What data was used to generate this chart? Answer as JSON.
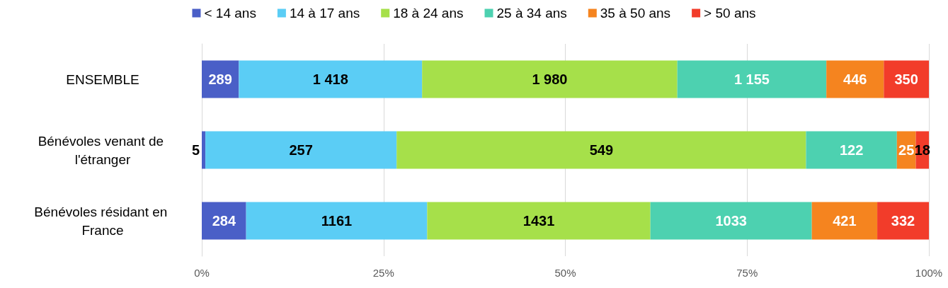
{
  "chart_data": {
    "type": "bar",
    "orientation": "horizontal",
    "stacked": true,
    "categories": [
      "ENSEMBLE",
      "Bénévoles venant de l'étranger",
      "Bénévoles résidant en France"
    ],
    "series": [
      {
        "name": "< 14 ans",
        "color": "#4a5fc7",
        "values": [
          5.1,
          0.5,
          6.1
        ]
      },
      {
        "name": "14 à 17 ans",
        "color": "#5bcdf5",
        "values": [
          25.2,
          26.3,
          24.9
        ]
      },
      {
        "name": "18 à 24 ans",
        "color": "#a6e04a",
        "values": [
          35.1,
          56.3,
          30.7
        ]
      },
      {
        "name": "25 à 34 ans",
        "color": "#4dd1b0",
        "values": [
          20.5,
          12.5,
          22.2
        ]
      },
      {
        "name": "35 à 50 ans",
        "color": "#f5841f",
        "values": [
          7.9,
          2.6,
          9.0
        ]
      },
      {
        "name": "> 50 ans",
        "color": "#f23c2a",
        "values": [
          6.2,
          1.8,
          7.1
        ]
      }
    ],
    "annotations": [
      "289",
      "1 418",
      "1 980",
      "1 155",
      "446",
      "350",
      "5",
      "257",
      "549",
      "122",
      "25",
      "18",
      "284",
      "1161",
      "1431",
      "1033",
      "421",
      "332"
    ],
    "xlim": [
      0,
      100
    ],
    "xticks": [
      {
        "value": 0,
        "label": "0%"
      },
      {
        "value": 25,
        "label": "25%"
      },
      {
        "value": 50,
        "label": "50%"
      },
      {
        "value": 75,
        "label": "75%"
      },
      {
        "value": 100,
        "label": "100%"
      }
    ],
    "grid": "x",
    "legend": "top"
  }
}
